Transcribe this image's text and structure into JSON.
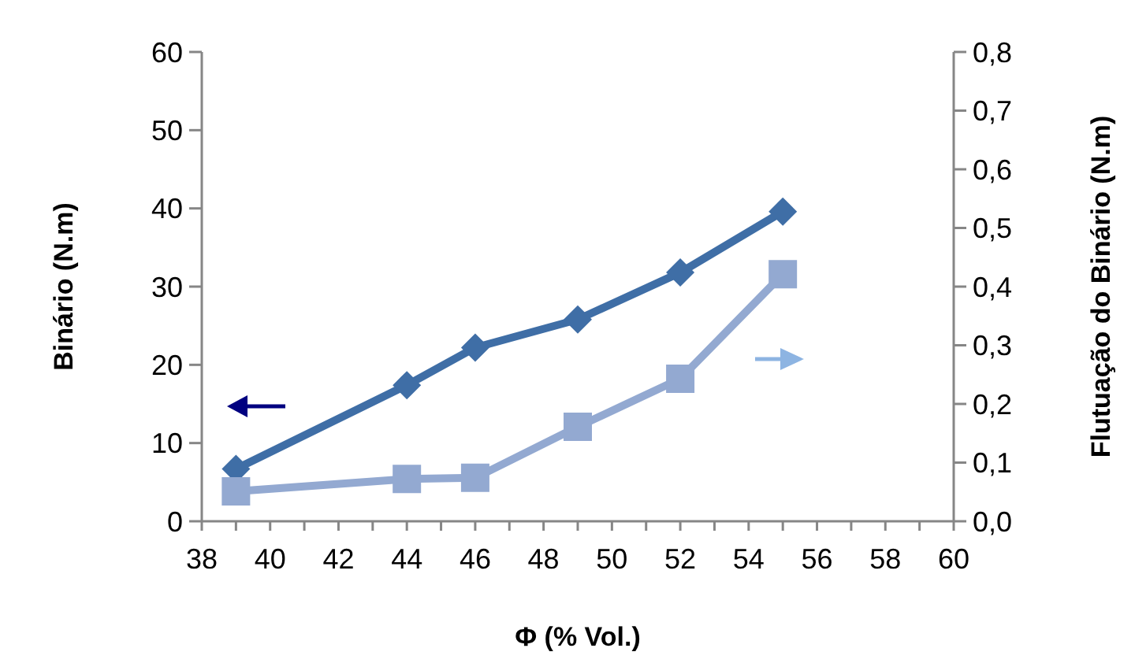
{
  "chart_data": {
    "type": "line",
    "xlabel": "Φ (% Vol.)",
    "ylabel": "Binário (N.m)",
    "y2label": "Flutuação do Binário (N.m)",
    "x": [
      39,
      44,
      46,
      49,
      52,
      55
    ],
    "series": [
      {
        "color": "#3f6ea6",
        "marker": "diamond",
        "values": [
          6.7,
          17.4,
          22.2,
          25.8,
          31.8,
          39.6
        ]
      },
      {
        "color": "#93a9d1",
        "marker": "square",
        "axis": "y2",
        "values": [
          0.051,
          0.072,
          0.074,
          0.161,
          0.243,
          0.421
        ]
      }
    ],
    "xlim": [
      38,
      60
    ],
    "xticks": [
      38,
      {
        "value": 39,
        "label": null
      },
      40,
      {
        "value": 41,
        "label": null
      },
      42,
      {
        "value": 43,
        "label": null
      },
      44,
      {
        "value": 45,
        "label": null
      },
      46,
      {
        "value": 47,
        "label": null
      },
      48,
      {
        "value": 49,
        "label": null
      },
      50,
      {
        "value": 51,
        "label": null
      },
      52,
      {
        "value": 53,
        "label": null
      },
      54,
      {
        "value": 55,
        "label": null
      },
      56,
      {
        "value": 57,
        "label": null
      },
      58,
      {
        "value": 59,
        "label": null
      },
      60
    ],
    "ylim": [
      0,
      60
    ],
    "yticks": [
      0,
      10,
      20,
      30,
      40,
      50,
      60
    ],
    "y2lim": [
      0,
      0.8
    ],
    "y2ticks": [
      {
        "value": 0,
        "label": "0,0"
      },
      {
        "value": 0.1,
        "label": "0,1"
      },
      {
        "value": 0.2,
        "label": "0,2"
      },
      {
        "value": 0.3,
        "label": "0,3"
      },
      {
        "value": 0.4,
        "label": "0,4"
      },
      {
        "value": 0.5,
        "label": "0,5"
      },
      {
        "value": 0.6,
        "label": "0,6"
      },
      {
        "value": 0.7,
        "label": "0,7"
      },
      {
        "value": 0.8,
        "label": "0,8"
      }
    ],
    "grid": false,
    "line_style": "solid"
  }
}
